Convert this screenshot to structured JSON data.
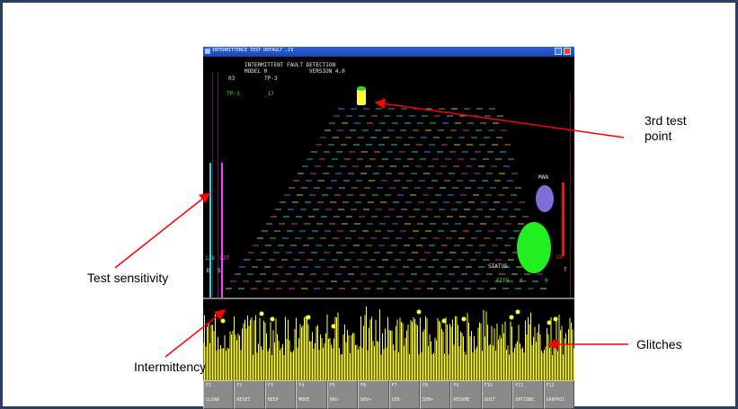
{
  "window": {
    "title": "INTERMITTENCE TEST  DEFAULT .I9",
    "header_line1": "INTERMITTENT FAULT DETECTION",
    "header_model": "MODEL  0",
    "header_version": "VERSION 4.0",
    "test_count": "03",
    "test_point_label": "TP-3",
    "active_tp": "TP-3",
    "active_tp_value": "_17",
    "man_label": "MAN",
    "status_label": "STATUS",
    "fifo_label": "FIFO",
    "fifo_value_1": "0",
    "fifo_value_2": "0",
    "left_value_1": "128",
    "left_value_2": "127",
    "left_label_d": "D",
    "left_label_s": "S",
    "right_value": "19",
    "right_label": "T"
  },
  "fkeys": [
    {
      "num": "F1",
      "label": "CLEAR"
    },
    {
      "num": "F2",
      "label": "RESET"
    },
    {
      "num": "F3",
      "label": "BEEP"
    },
    {
      "num": "F4",
      "label": "MODE"
    },
    {
      "num": "F5",
      "label": "DRV-"
    },
    {
      "num": "F6",
      "label": "DRV+"
    },
    {
      "num": "F7",
      "label": "SEN-"
    },
    {
      "num": "F8",
      "label": "SEN+"
    },
    {
      "num": "F9",
      "label": "RESUME"
    },
    {
      "num": "F10",
      "label": "QUIT"
    },
    {
      "num": "F11",
      "label": "OPTIONS"
    },
    {
      "num": "F12",
      "label": "GRAPHIC"
    }
  ],
  "callouts": {
    "third_test_point": "3rd test\npoint",
    "test_sensitivity": "Test sensitivity",
    "glitches": "Glitches",
    "intermittency": "Intermittency"
  },
  "colors": {
    "frame": "#2b3f62",
    "glitch": "#ffff33",
    "arrow": "#ff0000",
    "status_circle": "#22ee22",
    "man_circle": "#7d6fd6"
  }
}
